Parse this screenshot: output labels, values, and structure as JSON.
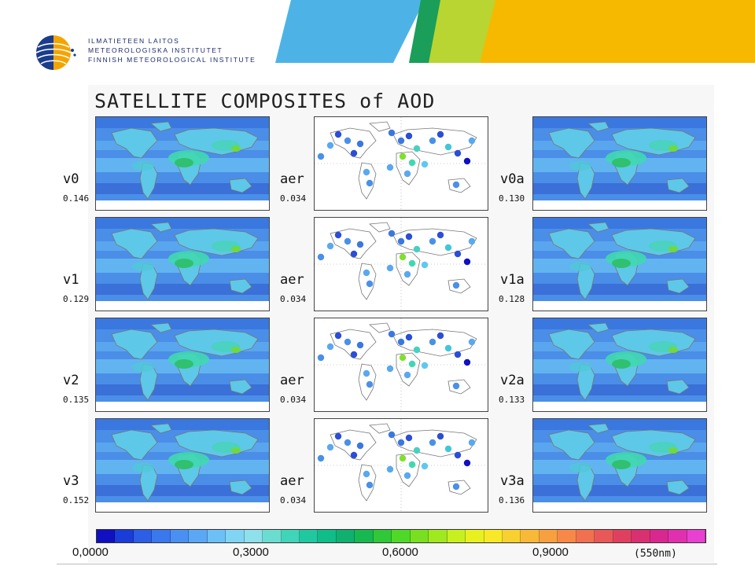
{
  "header": {
    "institute_lines": [
      "ILMATIETEEN LAITOS",
      "METEOROLOGISKA INSTITUTET",
      "FINNISH METEOROLOGICAL INSTITUTE"
    ],
    "banner_colors": [
      "#4db3e6",
      "#1a9e5a",
      "#b9d531",
      "#f7b800"
    ]
  },
  "figure": {
    "title": "SATELLITE COMPOSITES of AOD",
    "rows": [
      {
        "left": {
          "label": "v0",
          "value": "0.146"
        },
        "middle": {
          "label": "aer",
          "value": "0.034"
        },
        "right": {
          "label": "v0a",
          "value": "0.130"
        }
      },
      {
        "left": {
          "label": "v1",
          "value": "0.129"
        },
        "middle": {
          "label": "aer",
          "value": "0.034"
        },
        "right": {
          "label": "v1a",
          "value": "0.128"
        }
      },
      {
        "left": {
          "label": "v2",
          "value": "0.135"
        },
        "middle": {
          "label": "aer",
          "value": "0.034"
        },
        "right": {
          "label": "v2a",
          "value": "0.133"
        }
      },
      {
        "left": {
          "label": "v3",
          "value": "0.152"
        },
        "middle": {
          "label": "aer",
          "value": "0.034"
        },
        "right": {
          "label": "v3a",
          "value": "0.136"
        }
      }
    ],
    "colorbar": {
      "ticks": [
        "0,0000",
        "0,3000",
        "0,6000",
        "0,9000"
      ],
      "unit": "(550nm)",
      "colors": [
        "#1010c0",
        "#1a3cd8",
        "#2c5ee6",
        "#3a78ee",
        "#4a90f2",
        "#5aa8f5",
        "#6cc0f6",
        "#80d4f4",
        "#8ee0ea",
        "#6adcd0",
        "#40d4b8",
        "#20c8a0",
        "#10bc88",
        "#10b070",
        "#18b850",
        "#30c838",
        "#50d828",
        "#78e020",
        "#a0e820",
        "#c8f020",
        "#e8f020",
        "#f8e828",
        "#f8d030",
        "#f8b838",
        "#f8a040",
        "#f88848",
        "#f07050",
        "#e85858",
        "#e04060",
        "#d83070",
        "#d82890",
        "#e030b0",
        "#e840d0"
      ]
    }
  }
}
